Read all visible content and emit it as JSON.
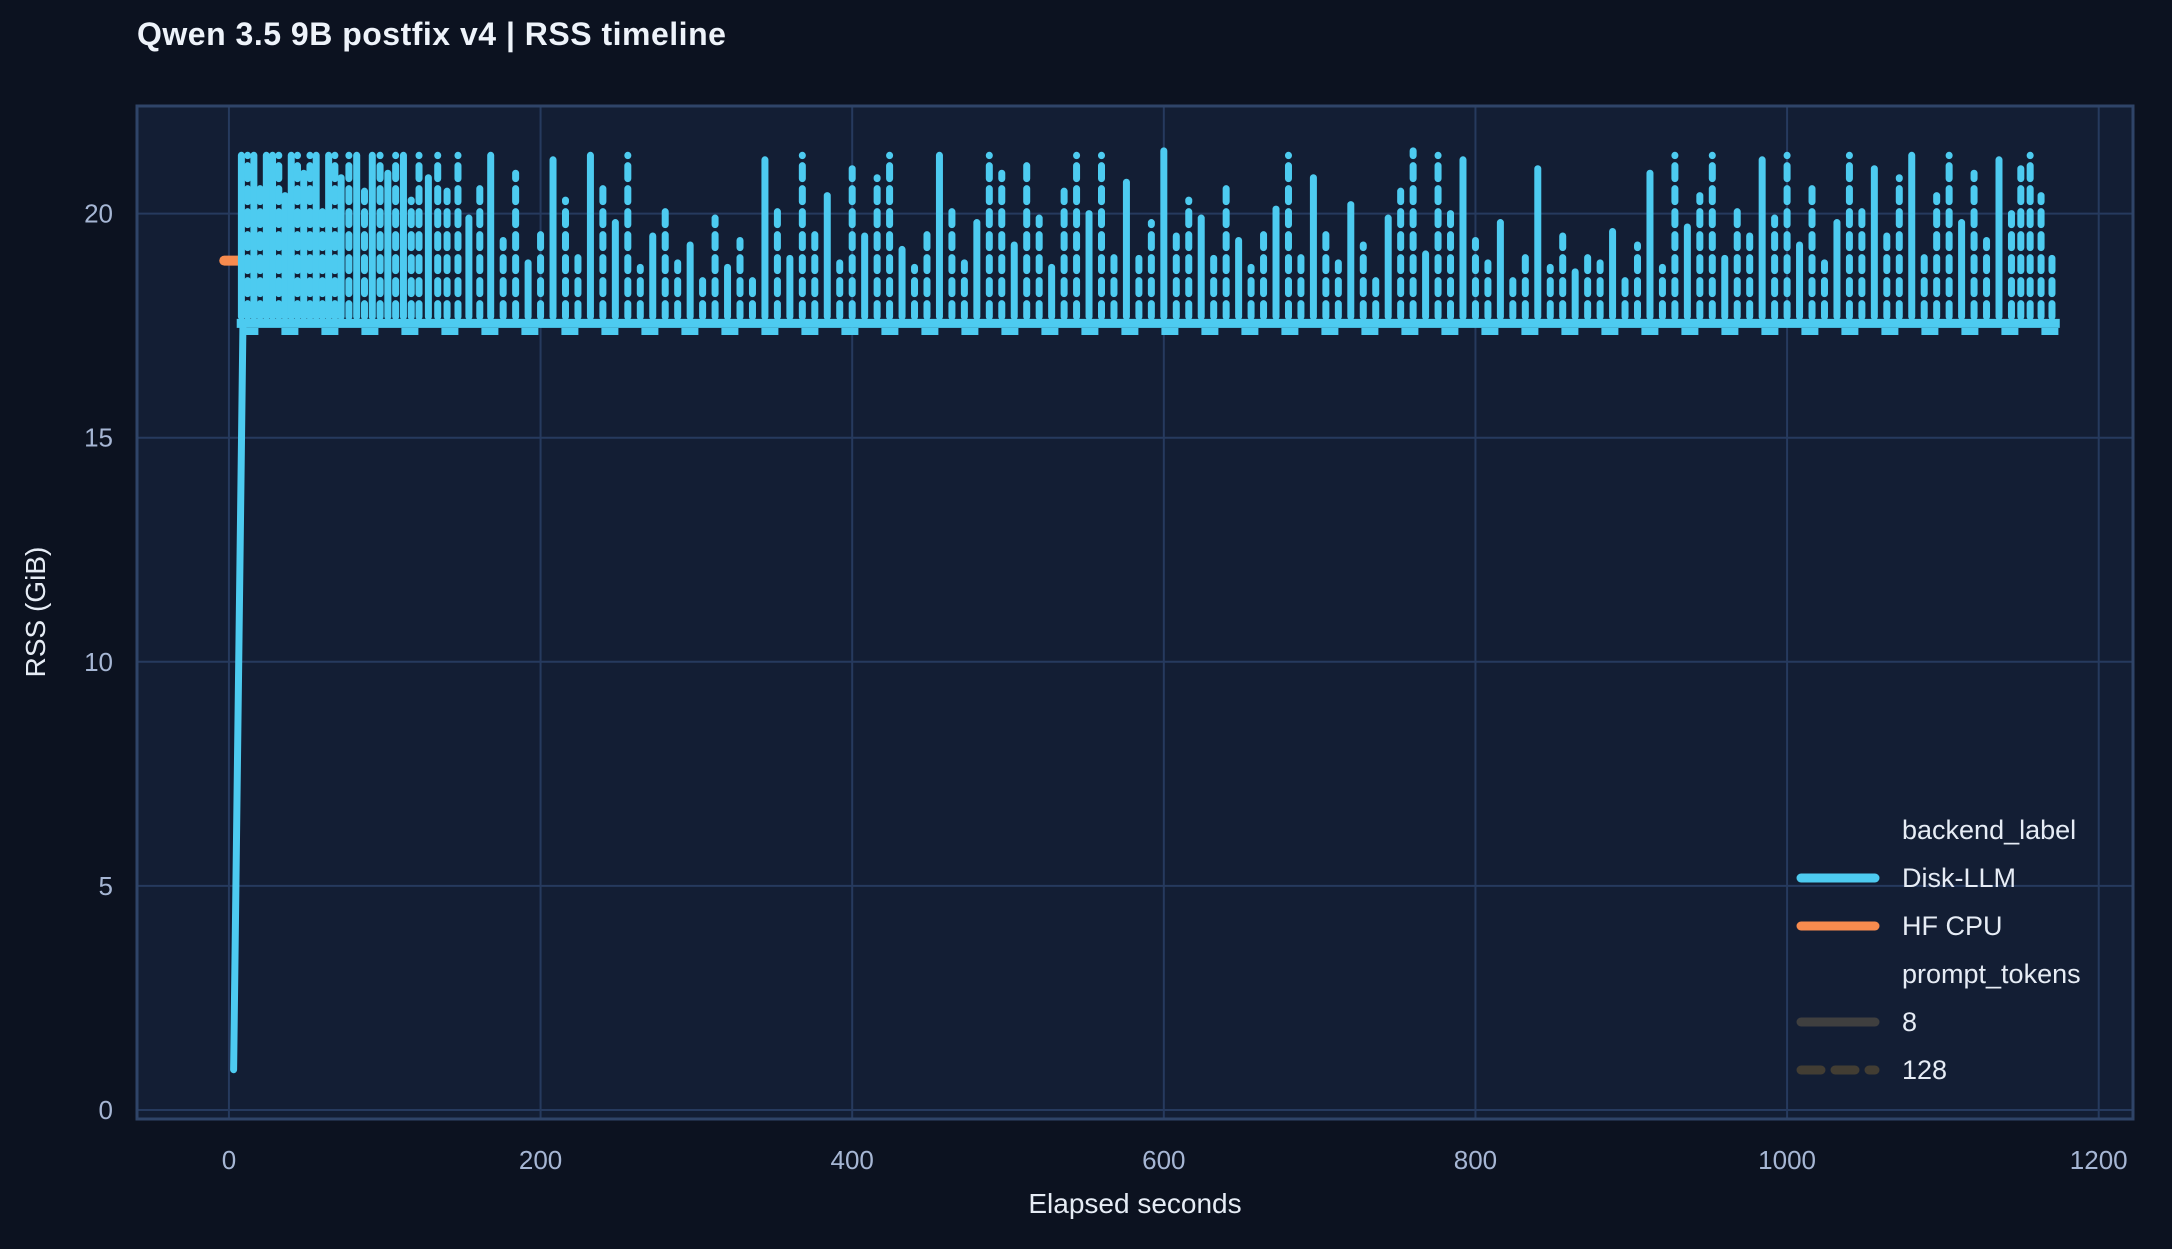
{
  "chart_data": {
    "type": "line",
    "title": "Qwen 3.5 9B postfix v4 | RSS timeline",
    "xlabel": "Elapsed seconds",
    "ylabel": "RSS (GiB)",
    "x_ticks": [
      0,
      200,
      400,
      600,
      800,
      1000,
      1200
    ],
    "y_ticks": [
      0,
      5,
      10,
      15,
      20
    ],
    "x_range": [
      -59,
      1222
    ],
    "y_range": [
      -0.2,
      22.4
    ],
    "grid": true,
    "legend_position": "bottom-right",
    "colors": {
      "outer_bg": "#0c1220",
      "plot_bg": "#131e34",
      "grid": "#263a5e",
      "border": "#2f4468",
      "tick": "#a6b6d4",
      "text": "#e6ecf5",
      "disk_llm": "#4dcbf0",
      "hf_cpu": "#f78b4e",
      "prompt_8": "#3f3f3f",
      "prompt_128": "#423d33"
    },
    "series": [
      {
        "name": "Disk-LLM",
        "color": "#4dcbf0",
        "baseline_y": 17.55,
        "baseline_x": [
          5,
          1175
        ],
        "intro": [
          [
            3,
            0.9
          ],
          [
            9,
            17.55
          ]
        ],
        "spikes": [
          [
            8,
            21.3,
            "s"
          ],
          [
            12,
            21.3,
            "d"
          ],
          [
            16,
            21.3,
            "s"
          ],
          [
            20,
            20.7,
            "d"
          ],
          [
            24,
            21.3,
            "s"
          ],
          [
            28,
            21.3,
            "s"
          ],
          [
            32,
            21.3,
            "d"
          ],
          [
            36,
            20.4,
            "s"
          ],
          [
            40,
            21.3,
            "s"
          ],
          [
            44,
            21.3,
            "d"
          ],
          [
            48,
            20.9,
            "s"
          ],
          [
            52,
            21.3,
            "d"
          ],
          [
            56,
            21.3,
            "s"
          ],
          [
            60,
            20.2,
            "d"
          ],
          [
            64,
            21.3,
            "s"
          ],
          [
            68,
            21.3,
            "d"
          ],
          [
            72,
            20.8,
            "s"
          ],
          [
            77,
            21.3,
            "d"
          ],
          [
            82,
            21.3,
            "s"
          ],
          [
            87,
            20.5,
            "d"
          ],
          [
            92,
            21.3,
            "s"
          ],
          [
            97,
            21.3,
            "d"
          ],
          [
            102,
            20.9,
            "s"
          ],
          [
            107,
            21.3,
            "d"
          ],
          [
            112,
            21.3,
            "s"
          ],
          [
            117,
            20.3,
            "d"
          ],
          [
            122,
            21.3,
            "d"
          ],
          [
            128,
            20.8,
            "s"
          ],
          [
            134,
            21.3,
            "d"
          ],
          [
            140,
            20.5,
            "d"
          ],
          [
            147,
            21.3,
            "d"
          ],
          [
            154,
            19.9,
            "s"
          ],
          [
            161,
            20.6,
            "d"
          ],
          [
            168,
            21.3,
            "s"
          ],
          [
            176,
            19.4,
            "d"
          ],
          [
            184,
            20.9,
            "d"
          ],
          [
            192,
            18.9,
            "s"
          ],
          [
            200,
            19.6,
            "d"
          ],
          [
            208,
            21.2,
            "s"
          ],
          [
            216,
            20.3,
            "d"
          ],
          [
            224,
            19.1,
            "d"
          ],
          [
            232,
            21.3,
            "s"
          ],
          [
            240,
            20.7,
            "d"
          ],
          [
            248,
            19.8,
            "s"
          ],
          [
            256,
            21.3,
            "d"
          ],
          [
            264,
            18.8,
            "d"
          ],
          [
            272,
            19.5,
            "s"
          ],
          [
            280,
            20.2,
            "d"
          ],
          [
            288,
            18.9,
            "d"
          ],
          [
            296,
            19.3,
            "s"
          ],
          [
            304,
            18.7,
            "d"
          ],
          [
            312,
            19.9,
            "d"
          ],
          [
            320,
            18.8,
            "s"
          ],
          [
            328,
            19.4,
            "d"
          ],
          [
            336,
            18.6,
            "d"
          ],
          [
            344,
            21.2,
            "s"
          ],
          [
            352,
            20.1,
            "d"
          ],
          [
            360,
            19.0,
            "s"
          ],
          [
            368,
            21.3,
            "d"
          ],
          [
            376,
            19.7,
            "d"
          ],
          [
            384,
            20.4,
            "s"
          ],
          [
            392,
            18.9,
            "d"
          ],
          [
            400,
            21.0,
            "d"
          ],
          [
            408,
            19.5,
            "s"
          ],
          [
            416,
            20.8,
            "d"
          ],
          [
            424,
            21.3,
            "d"
          ],
          [
            432,
            19.2,
            "s"
          ],
          [
            440,
            18.8,
            "d"
          ],
          [
            448,
            19.6,
            "d"
          ],
          [
            456,
            21.3,
            "s"
          ],
          [
            464,
            20.2,
            "d"
          ],
          [
            472,
            18.9,
            "d"
          ],
          [
            480,
            19.8,
            "s"
          ],
          [
            488,
            21.3,
            "d"
          ],
          [
            496,
            20.9,
            "d"
          ],
          [
            504,
            19.3,
            "s"
          ],
          [
            512,
            21.2,
            "d"
          ],
          [
            520,
            19.9,
            "d"
          ],
          [
            528,
            18.8,
            "s"
          ],
          [
            536,
            20.5,
            "d"
          ],
          [
            544,
            21.3,
            "d"
          ],
          [
            552,
            20.0,
            "s"
          ],
          [
            560,
            21.3,
            "d"
          ],
          [
            568,
            19.2,
            "d"
          ],
          [
            576,
            20.7,
            "s"
          ],
          [
            584,
            19.0,
            "d"
          ],
          [
            592,
            19.8,
            "d"
          ],
          [
            600,
            21.4,
            "s"
          ],
          [
            608,
            19.5,
            "d"
          ],
          [
            616,
            20.3,
            "d"
          ],
          [
            624,
            19.9,
            "s"
          ],
          [
            632,
            19.0,
            "d"
          ],
          [
            640,
            20.6,
            "d"
          ],
          [
            648,
            19.4,
            "s"
          ],
          [
            656,
            18.8,
            "d"
          ],
          [
            664,
            19.7,
            "d"
          ],
          [
            672,
            20.1,
            "s"
          ],
          [
            680,
            21.3,
            "d"
          ],
          [
            688,
            19.2,
            "d"
          ],
          [
            696,
            20.8,
            "s"
          ],
          [
            704,
            19.6,
            "d"
          ],
          [
            712,
            18.9,
            "d"
          ],
          [
            720,
            20.2,
            "s"
          ],
          [
            728,
            19.3,
            "d"
          ],
          [
            736,
            18.7,
            "d"
          ],
          [
            744,
            19.9,
            "s"
          ],
          [
            752,
            20.5,
            "d"
          ],
          [
            760,
            21.4,
            "d"
          ],
          [
            768,
            19.1,
            "s"
          ],
          [
            776,
            21.3,
            "d"
          ],
          [
            784,
            20.0,
            "d"
          ],
          [
            792,
            21.2,
            "s"
          ],
          [
            800,
            19.4,
            "d"
          ],
          [
            808,
            18.9,
            "d"
          ],
          [
            816,
            19.8,
            "s"
          ],
          [
            824,
            18.6,
            "d"
          ],
          [
            832,
            19.2,
            "d"
          ],
          [
            840,
            21.0,
            "s"
          ],
          [
            848,
            18.8,
            "d"
          ],
          [
            856,
            19.5,
            "d"
          ],
          [
            864,
            18.7,
            "s"
          ],
          [
            872,
            19.1,
            "d"
          ],
          [
            880,
            18.9,
            "d"
          ],
          [
            888,
            19.6,
            "s"
          ],
          [
            896,
            18.6,
            "d"
          ],
          [
            904,
            19.3,
            "d"
          ],
          [
            912,
            20.9,
            "s"
          ],
          [
            920,
            18.8,
            "d"
          ],
          [
            928,
            21.3,
            "d"
          ],
          [
            936,
            19.7,
            "s"
          ],
          [
            944,
            20.4,
            "d"
          ],
          [
            952,
            21.3,
            "d"
          ],
          [
            960,
            19.0,
            "s"
          ],
          [
            968,
            20.1,
            "d"
          ],
          [
            976,
            19.5,
            "d"
          ],
          [
            984,
            21.2,
            "s"
          ],
          [
            992,
            19.9,
            "d"
          ],
          [
            1000,
            21.3,
            "d"
          ],
          [
            1008,
            19.3,
            "s"
          ],
          [
            1016,
            20.6,
            "d"
          ],
          [
            1024,
            18.9,
            "d"
          ],
          [
            1032,
            19.8,
            "s"
          ],
          [
            1040,
            21.3,
            "d"
          ],
          [
            1048,
            20.2,
            "d"
          ],
          [
            1056,
            21.0,
            "s"
          ],
          [
            1064,
            19.5,
            "d"
          ],
          [
            1072,
            20.8,
            "d"
          ],
          [
            1080,
            21.3,
            "s"
          ],
          [
            1088,
            19.2,
            "d"
          ],
          [
            1096,
            20.4,
            "d"
          ],
          [
            1104,
            21.3,
            "d"
          ],
          [
            1112,
            19.8,
            "s"
          ],
          [
            1120,
            20.9,
            "d"
          ],
          [
            1128,
            19.4,
            "d"
          ],
          [
            1136,
            21.2,
            "s"
          ],
          [
            1144,
            20.0,
            "d"
          ],
          [
            1150,
            21.0,
            "d"
          ],
          [
            1156,
            21.3,
            "d"
          ],
          [
            1163,
            20.4,
            "d"
          ],
          [
            1170,
            19.0,
            "d"
          ]
        ]
      },
      {
        "name": "HF CPU",
        "color": "#f78b4e",
        "points": [
          [
            -3,
            18.95
          ],
          [
            16,
            18.95
          ]
        ]
      }
    ],
    "legend": {
      "groups": [
        {
          "title": "backend_label",
          "items": [
            {
              "label": "Disk-LLM",
              "color": "#4dcbf0",
              "dash": "solid"
            },
            {
              "label": "HF CPU",
              "color": "#f78b4e",
              "dash": "solid"
            }
          ]
        },
        {
          "title": "prompt_tokens",
          "items": [
            {
              "label": "8",
              "color": "#3f3f3f",
              "dash": "solid"
            },
            {
              "label": "128",
              "color": "#423d33",
              "dash": "dash"
            }
          ]
        }
      ]
    }
  }
}
